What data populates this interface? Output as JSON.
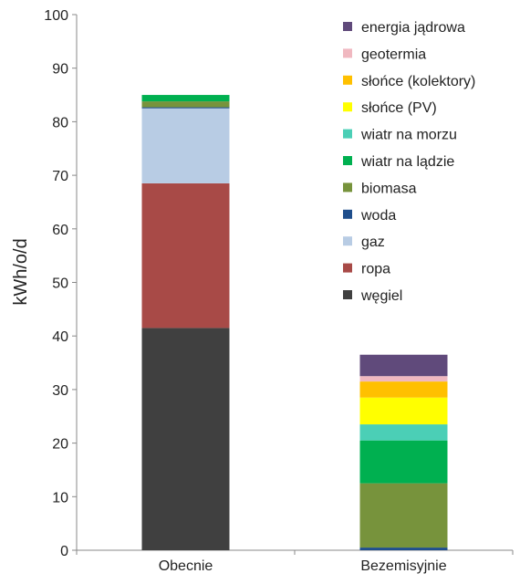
{
  "chart_data": {
    "type": "bar",
    "stacked": true,
    "categories": [
      "Obecnie",
      "Bezemisyjnie"
    ],
    "ylabel": "kWh/o/d",
    "xlabel": "",
    "ylim": [
      0,
      100
    ],
    "yticks": [
      0,
      10,
      20,
      30,
      40,
      50,
      60,
      70,
      80,
      90,
      100
    ],
    "grid": false,
    "legend_position": "top-right",
    "series": [
      {
        "name": "węgiel",
        "color": "#404040",
        "values": [
          41.5,
          0
        ]
      },
      {
        "name": "ropa",
        "color": "#a84a47",
        "values": [
          27,
          0
        ]
      },
      {
        "name": "gaz",
        "color": "#b8cce4",
        "values": [
          14,
          0
        ]
      },
      {
        "name": "woda",
        "color": "#1f4e8c",
        "values": [
          0.2,
          0.5
        ]
      },
      {
        "name": "biomasa",
        "color": "#77933c",
        "values": [
          1.1,
          12
        ]
      },
      {
        "name": "wiatr na lądzie",
        "color": "#00b050",
        "values": [
          1.2,
          8
        ]
      },
      {
        "name": "wiatr na morzu",
        "color": "#4bcfb6",
        "values": [
          0,
          3
        ]
      },
      {
        "name": "słońce (PV)",
        "color": "#ffff00",
        "values": [
          0,
          5
        ]
      },
      {
        "name": "słońce (kolektory)",
        "color": "#ffc000",
        "values": [
          0,
          3
        ]
      },
      {
        "name": "geotermia",
        "color": "#f0b8c0",
        "values": [
          0,
          1
        ]
      },
      {
        "name": "energia jądrowa",
        "color": "#604a7b",
        "values": [
          0,
          4
        ]
      }
    ]
  }
}
